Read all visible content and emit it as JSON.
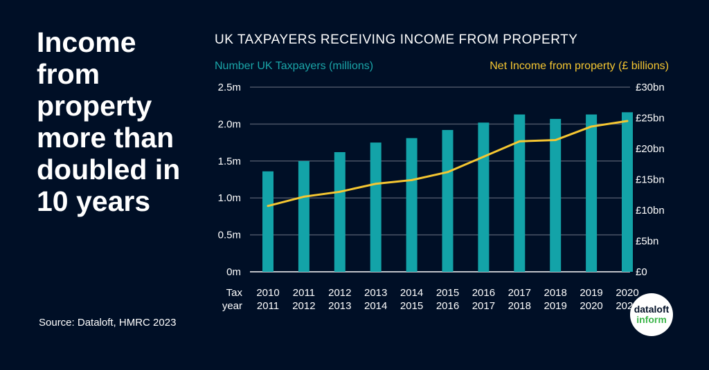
{
  "headline": "Income from property more than doubled in 10 years",
  "source": "Source: Dataloft, HMRC 2023",
  "logo": {
    "line1": "dataloft",
    "line2": "inform"
  },
  "colors": {
    "background": "#000f26",
    "bars": "#13a3a8",
    "line": "#f5c631",
    "left_legend": "#1aa6a9",
    "right_legend": "#f5c631"
  },
  "chart_data": {
    "type": "bar+line",
    "title": "UK TAXPAYERS RECEIVING INCOME FROM PROPERTY",
    "xlabel": "Tax year",
    "xlabel_lines": [
      "Tax",
      "year"
    ],
    "categories": [
      [
        "2010",
        "2011"
      ],
      [
        "2011",
        "2012"
      ],
      [
        "2012",
        "2013"
      ],
      [
        "2013",
        "2014"
      ],
      [
        "2014",
        "2015"
      ],
      [
        "2015",
        "2016"
      ],
      [
        "2016",
        "2017"
      ],
      [
        "2017",
        "2018"
      ],
      [
        "2018",
        "2019"
      ],
      [
        "2019",
        "2020"
      ],
      [
        "2020",
        "2021"
      ]
    ],
    "series": [
      {
        "name": "Number UK Taxpayers (millions)",
        "type": "bar",
        "axis": "left",
        "values": [
          1.36,
          1.5,
          1.62,
          1.75,
          1.81,
          1.92,
          2.02,
          2.13,
          2.07,
          2.13,
          2.16
        ]
      },
      {
        "name": "Net Income from property (£ billions)",
        "type": "line",
        "axis": "right",
        "values": [
          10.7,
          12.2,
          13.0,
          14.3,
          14.9,
          16.2,
          18.7,
          21.2,
          21.4,
          23.6,
          24.5
        ]
      }
    ],
    "y_left": {
      "range": [
        0,
        2.5
      ],
      "ticks": [
        "0m",
        "0.5m",
        "1.0m",
        "1.5m",
        "2.0m",
        "2.5m"
      ]
    },
    "y_right": {
      "range": [
        0,
        30
      ],
      "ticks": [
        "£0",
        "£5bn",
        "£10bn",
        "£15bn",
        "£20bn",
        "£25bn",
        "£30bn"
      ]
    },
    "grid": true
  }
}
